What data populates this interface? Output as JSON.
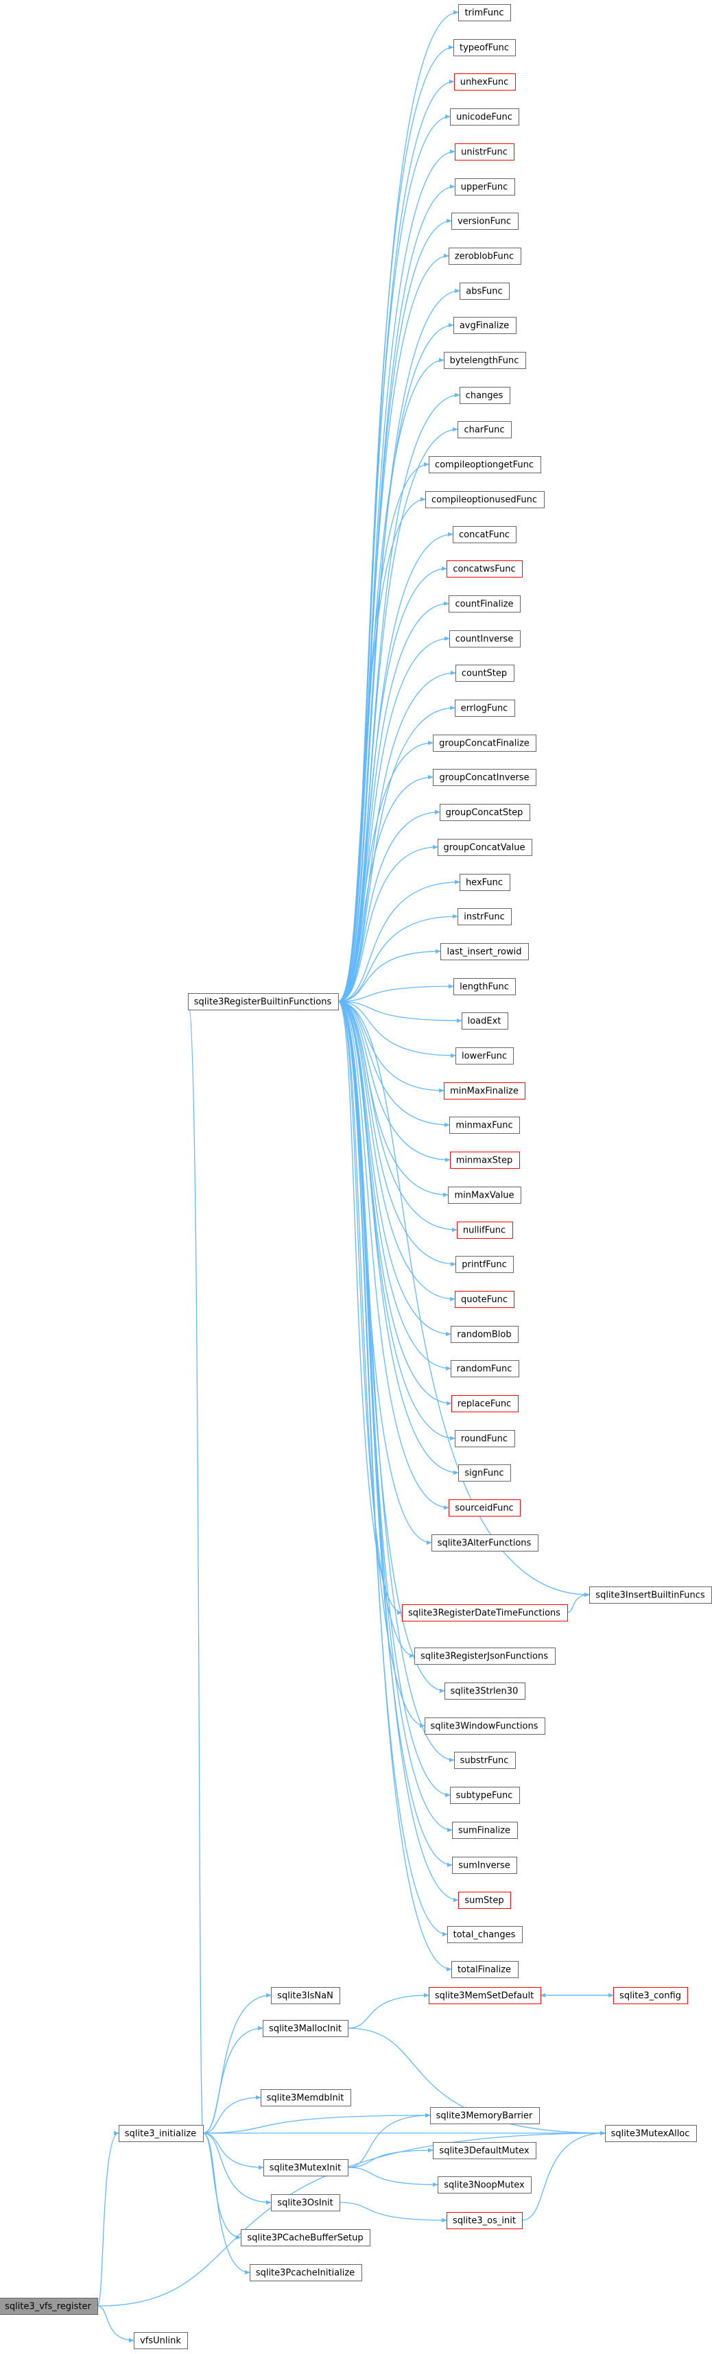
{
  "colors": {
    "edge": "#63b8ff",
    "node_border": "#666666",
    "node_border_incomplete": "#ff0000",
    "node_fill": "#ffffff",
    "root_fill": "#999999"
  },
  "graph": {
    "root": "sqlite3_vfs_register",
    "nodes": [
      {
        "id": "trimFunc",
        "label": "trimFunc"
      },
      {
        "id": "typeofFunc",
        "label": "typeofFunc"
      },
      {
        "id": "unhexFunc",
        "label": "unhexFunc",
        "incomplete": true
      },
      {
        "id": "unicodeFunc",
        "label": "unicodeFunc"
      },
      {
        "id": "unistrFunc",
        "label": "unistrFunc",
        "incomplete": true
      },
      {
        "id": "upperFunc",
        "label": "upperFunc"
      },
      {
        "id": "versionFunc",
        "label": "versionFunc"
      },
      {
        "id": "zeroblobFunc",
        "label": "zeroblobFunc"
      },
      {
        "id": "absFunc",
        "label": "absFunc"
      },
      {
        "id": "avgFinalize",
        "label": "avgFinalize"
      },
      {
        "id": "bytelengthFunc",
        "label": "bytelengthFunc"
      },
      {
        "id": "changes",
        "label": "changes"
      },
      {
        "id": "charFunc",
        "label": "charFunc"
      },
      {
        "id": "compileoptiongetFunc",
        "label": "compileoptiongetFunc"
      },
      {
        "id": "compileoptionusedFunc",
        "label": "compileoptionusedFunc"
      },
      {
        "id": "concatFunc",
        "label": "concatFunc"
      },
      {
        "id": "concatwsFunc",
        "label": "concatwsFunc",
        "incomplete": true
      },
      {
        "id": "countFinalize",
        "label": "countFinalize"
      },
      {
        "id": "countInverse",
        "label": "countInverse"
      },
      {
        "id": "countStep",
        "label": "countStep"
      },
      {
        "id": "errlogFunc",
        "label": "errlogFunc"
      },
      {
        "id": "groupConcatFinalize",
        "label": "groupConcatFinalize"
      },
      {
        "id": "groupConcatInverse",
        "label": "groupConcatInverse"
      },
      {
        "id": "groupConcatStep",
        "label": "groupConcatStep"
      },
      {
        "id": "groupConcatValue",
        "label": "groupConcatValue"
      },
      {
        "id": "hexFunc",
        "label": "hexFunc"
      },
      {
        "id": "instrFunc",
        "label": "instrFunc"
      },
      {
        "id": "last_insert_rowid",
        "label": "last_insert_rowid"
      },
      {
        "id": "lengthFunc",
        "label": "lengthFunc"
      },
      {
        "id": "loadExt",
        "label": "loadExt"
      },
      {
        "id": "lowerFunc",
        "label": "lowerFunc"
      },
      {
        "id": "minMaxFinalize",
        "label": "minMaxFinalize",
        "incomplete": true
      },
      {
        "id": "minmaxFunc",
        "label": "minmaxFunc"
      },
      {
        "id": "minmaxStep",
        "label": "minmaxStep",
        "incomplete": true
      },
      {
        "id": "minMaxValue",
        "label": "minMaxValue"
      },
      {
        "id": "nullifFunc",
        "label": "nullifFunc",
        "incomplete": true
      },
      {
        "id": "printfFunc",
        "label": "printfFunc"
      },
      {
        "id": "quoteFunc",
        "label": "quoteFunc",
        "incomplete": true
      },
      {
        "id": "randomBlob",
        "label": "randomBlob"
      },
      {
        "id": "randomFunc",
        "label": "randomFunc"
      },
      {
        "id": "replaceFunc",
        "label": "replaceFunc",
        "incomplete": true
      },
      {
        "id": "roundFunc",
        "label": "roundFunc"
      },
      {
        "id": "signFunc",
        "label": "signFunc"
      },
      {
        "id": "sourceidFunc",
        "label": "sourceidFunc",
        "incomplete": true
      },
      {
        "id": "sqlite3AlterFunctions",
        "label": "sqlite3AlterFunctions"
      },
      {
        "id": "sqlite3InsertBuiltinFuncs",
        "label": "sqlite3InsertBuiltinFuncs"
      },
      {
        "id": "sqlite3RegisterDateTimeFunctions",
        "label": "sqlite3RegisterDateTimeFunctions",
        "incomplete": true
      },
      {
        "id": "sqlite3RegisterJsonFunctions",
        "label": "sqlite3RegisterJsonFunctions"
      },
      {
        "id": "sqlite3Strlen30",
        "label": "sqlite3Strlen30"
      },
      {
        "id": "sqlite3WindowFunctions",
        "label": "sqlite3WindowFunctions"
      },
      {
        "id": "substrFunc",
        "label": "substrFunc"
      },
      {
        "id": "subtypeFunc",
        "label": "subtypeFunc"
      },
      {
        "id": "sumFinalize",
        "label": "sumFinalize"
      },
      {
        "id": "sumInverse",
        "label": "sumInverse"
      },
      {
        "id": "sumStep",
        "label": "sumStep",
        "incomplete": true
      },
      {
        "id": "total_changes",
        "label": "total_changes"
      },
      {
        "id": "totalFinalize",
        "label": "totalFinalize"
      },
      {
        "id": "sqlite3RegisterBuiltinFunctions",
        "label": "sqlite3RegisterBuiltinFunctions"
      },
      {
        "id": "sqlite3IsNaN",
        "label": "sqlite3IsNaN"
      },
      {
        "id": "sqlite3MallocInit",
        "label": "sqlite3MallocInit"
      },
      {
        "id": "sqlite3MemSetDefault",
        "label": "sqlite3MemSetDefault",
        "incomplete": true
      },
      {
        "id": "sqlite3_config",
        "label": "sqlite3_config",
        "incomplete": true
      },
      {
        "id": "sqlite3MemdbInit",
        "label": "sqlite3MemdbInit"
      },
      {
        "id": "sqlite3MemoryBarrier",
        "label": "sqlite3MemoryBarrier"
      },
      {
        "id": "sqlite3_initialize",
        "label": "sqlite3_initialize"
      },
      {
        "id": "sqlite3MutexAlloc",
        "label": "sqlite3MutexAlloc"
      },
      {
        "id": "sqlite3MutexInit",
        "label": "sqlite3MutexInit"
      },
      {
        "id": "sqlite3DefaultMutex",
        "label": "sqlite3DefaultMutex"
      },
      {
        "id": "sqlite3NoopMutex",
        "label": "sqlite3NoopMutex"
      },
      {
        "id": "sqlite3OsInit",
        "label": "sqlite3OsInit"
      },
      {
        "id": "sqlite3_os_init",
        "label": "sqlite3_os_init",
        "incomplete": true
      },
      {
        "id": "sqlite3PCacheBufferSetup",
        "label": "sqlite3PCacheBufferSetup"
      },
      {
        "id": "sqlite3PcacheInitialize",
        "label": "sqlite3PcacheInitialize"
      },
      {
        "id": "sqlite3_vfs_register",
        "label": "sqlite3_vfs_register"
      },
      {
        "id": "vfsUnlink",
        "label": "vfsUnlink"
      }
    ],
    "edges": [
      [
        "sqlite3_vfs_register",
        "sqlite3_initialize"
      ],
      [
        "sqlite3_vfs_register",
        "sqlite3MutexAlloc"
      ],
      [
        "sqlite3_vfs_register",
        "vfsUnlink"
      ],
      [
        "sqlite3_initialize",
        "sqlite3RegisterBuiltinFunctions"
      ],
      [
        "sqlite3_initialize",
        "sqlite3IsNaN"
      ],
      [
        "sqlite3_initialize",
        "sqlite3MallocInit"
      ],
      [
        "sqlite3_initialize",
        "sqlite3MemdbInit"
      ],
      [
        "sqlite3_initialize",
        "sqlite3MemoryBarrier"
      ],
      [
        "sqlite3_initialize",
        "sqlite3MutexAlloc"
      ],
      [
        "sqlite3_initialize",
        "sqlite3MutexInit"
      ],
      [
        "sqlite3_initialize",
        "sqlite3OsInit"
      ],
      [
        "sqlite3_initialize",
        "sqlite3PCacheBufferSetup"
      ],
      [
        "sqlite3_initialize",
        "sqlite3PcacheInitialize"
      ],
      [
        "sqlite3MallocInit",
        "sqlite3MemSetDefault"
      ],
      [
        "sqlite3MallocInit",
        "sqlite3MutexAlloc"
      ],
      [
        "sqlite3MemSetDefault",
        "sqlite3_config"
      ],
      [
        "sqlite3_config",
        "sqlite3MemSetDefault"
      ],
      [
        "sqlite3MutexInit",
        "sqlite3MemoryBarrier"
      ],
      [
        "sqlite3MutexInit",
        "sqlite3DefaultMutex"
      ],
      [
        "sqlite3MutexInit",
        "sqlite3NoopMutex"
      ],
      [
        "sqlite3OsInit",
        "sqlite3_os_init"
      ],
      [
        "sqlite3_os_init",
        "sqlite3MutexAlloc"
      ],
      [
        "sqlite3RegisterBuiltinFunctions",
        "sqlite3InsertBuiltinFuncs"
      ],
      [
        "sqlite3RegisterDateTimeFunctions",
        "sqlite3InsertBuiltinFuncs"
      ],
      [
        "sqlite3RegisterBuiltinFunctions",
        "trimFunc"
      ],
      [
        "sqlite3RegisterBuiltinFunctions",
        "typeofFunc"
      ],
      [
        "sqlite3RegisterBuiltinFunctions",
        "unhexFunc"
      ],
      [
        "sqlite3RegisterBuiltinFunctions",
        "unicodeFunc"
      ],
      [
        "sqlite3RegisterBuiltinFunctions",
        "unistrFunc"
      ],
      [
        "sqlite3RegisterBuiltinFunctions",
        "upperFunc"
      ],
      [
        "sqlite3RegisterBuiltinFunctions",
        "versionFunc"
      ],
      [
        "sqlite3RegisterBuiltinFunctions",
        "zeroblobFunc"
      ],
      [
        "sqlite3RegisterBuiltinFunctions",
        "absFunc"
      ],
      [
        "sqlite3RegisterBuiltinFunctions",
        "avgFinalize"
      ],
      [
        "sqlite3RegisterBuiltinFunctions",
        "bytelengthFunc"
      ],
      [
        "sqlite3RegisterBuiltinFunctions",
        "changes"
      ],
      [
        "sqlite3RegisterBuiltinFunctions",
        "charFunc"
      ],
      [
        "sqlite3RegisterBuiltinFunctions",
        "compileoptiongetFunc"
      ],
      [
        "sqlite3RegisterBuiltinFunctions",
        "compileoptionusedFunc"
      ],
      [
        "sqlite3RegisterBuiltinFunctions",
        "concatFunc"
      ],
      [
        "sqlite3RegisterBuiltinFunctions",
        "concatwsFunc"
      ],
      [
        "sqlite3RegisterBuiltinFunctions",
        "countFinalize"
      ],
      [
        "sqlite3RegisterBuiltinFunctions",
        "countInverse"
      ],
      [
        "sqlite3RegisterBuiltinFunctions",
        "countStep"
      ],
      [
        "sqlite3RegisterBuiltinFunctions",
        "errlogFunc"
      ],
      [
        "sqlite3RegisterBuiltinFunctions",
        "groupConcatFinalize"
      ],
      [
        "sqlite3RegisterBuiltinFunctions",
        "groupConcatInverse"
      ],
      [
        "sqlite3RegisterBuiltinFunctions",
        "groupConcatStep"
      ],
      [
        "sqlite3RegisterBuiltinFunctions",
        "groupConcatValue"
      ],
      [
        "sqlite3RegisterBuiltinFunctions",
        "hexFunc"
      ],
      [
        "sqlite3RegisterBuiltinFunctions",
        "instrFunc"
      ],
      [
        "sqlite3RegisterBuiltinFunctions",
        "last_insert_rowid"
      ],
      [
        "sqlite3RegisterBuiltinFunctions",
        "lengthFunc"
      ],
      [
        "sqlite3RegisterBuiltinFunctions",
        "loadExt"
      ],
      [
        "sqlite3RegisterBuiltinFunctions",
        "lowerFunc"
      ],
      [
        "sqlite3RegisterBuiltinFunctions",
        "minMaxFinalize"
      ],
      [
        "sqlite3RegisterBuiltinFunctions",
        "minmaxFunc"
      ],
      [
        "sqlite3RegisterBuiltinFunctions",
        "minmaxStep"
      ],
      [
        "sqlite3RegisterBuiltinFunctions",
        "minMaxValue"
      ],
      [
        "sqlite3RegisterBuiltinFunctions",
        "nullifFunc"
      ],
      [
        "sqlite3RegisterBuiltinFunctions",
        "printfFunc"
      ],
      [
        "sqlite3RegisterBuiltinFunctions",
        "quoteFunc"
      ],
      [
        "sqlite3RegisterBuiltinFunctions",
        "randomBlob"
      ],
      [
        "sqlite3RegisterBuiltinFunctions",
        "randomFunc"
      ],
      [
        "sqlite3RegisterBuiltinFunctions",
        "replaceFunc"
      ],
      [
        "sqlite3RegisterBuiltinFunctions",
        "roundFunc"
      ],
      [
        "sqlite3RegisterBuiltinFunctions",
        "signFunc"
      ],
      [
        "sqlite3RegisterBuiltinFunctions",
        "sourceidFunc"
      ],
      [
        "sqlite3RegisterBuiltinFunctions",
        "sqlite3AlterFunctions"
      ],
      [
        "sqlite3RegisterBuiltinFunctions",
        "sqlite3RegisterDateTimeFunctions"
      ],
      [
        "sqlite3RegisterBuiltinFunctions",
        "sqlite3RegisterJsonFunctions"
      ],
      [
        "sqlite3RegisterBuiltinFunctions",
        "sqlite3Strlen30"
      ],
      [
        "sqlite3RegisterBuiltinFunctions",
        "sqlite3WindowFunctions"
      ],
      [
        "sqlite3RegisterBuiltinFunctions",
        "substrFunc"
      ],
      [
        "sqlite3RegisterBuiltinFunctions",
        "subtypeFunc"
      ],
      [
        "sqlite3RegisterBuiltinFunctions",
        "sumFinalize"
      ],
      [
        "sqlite3RegisterBuiltinFunctions",
        "sumInverse"
      ],
      [
        "sqlite3RegisterBuiltinFunctions",
        "sumStep"
      ],
      [
        "sqlite3RegisterBuiltinFunctions",
        "total_changes"
      ],
      [
        "sqlite3RegisterBuiltinFunctions",
        "totalFinalize"
      ]
    ]
  }
}
